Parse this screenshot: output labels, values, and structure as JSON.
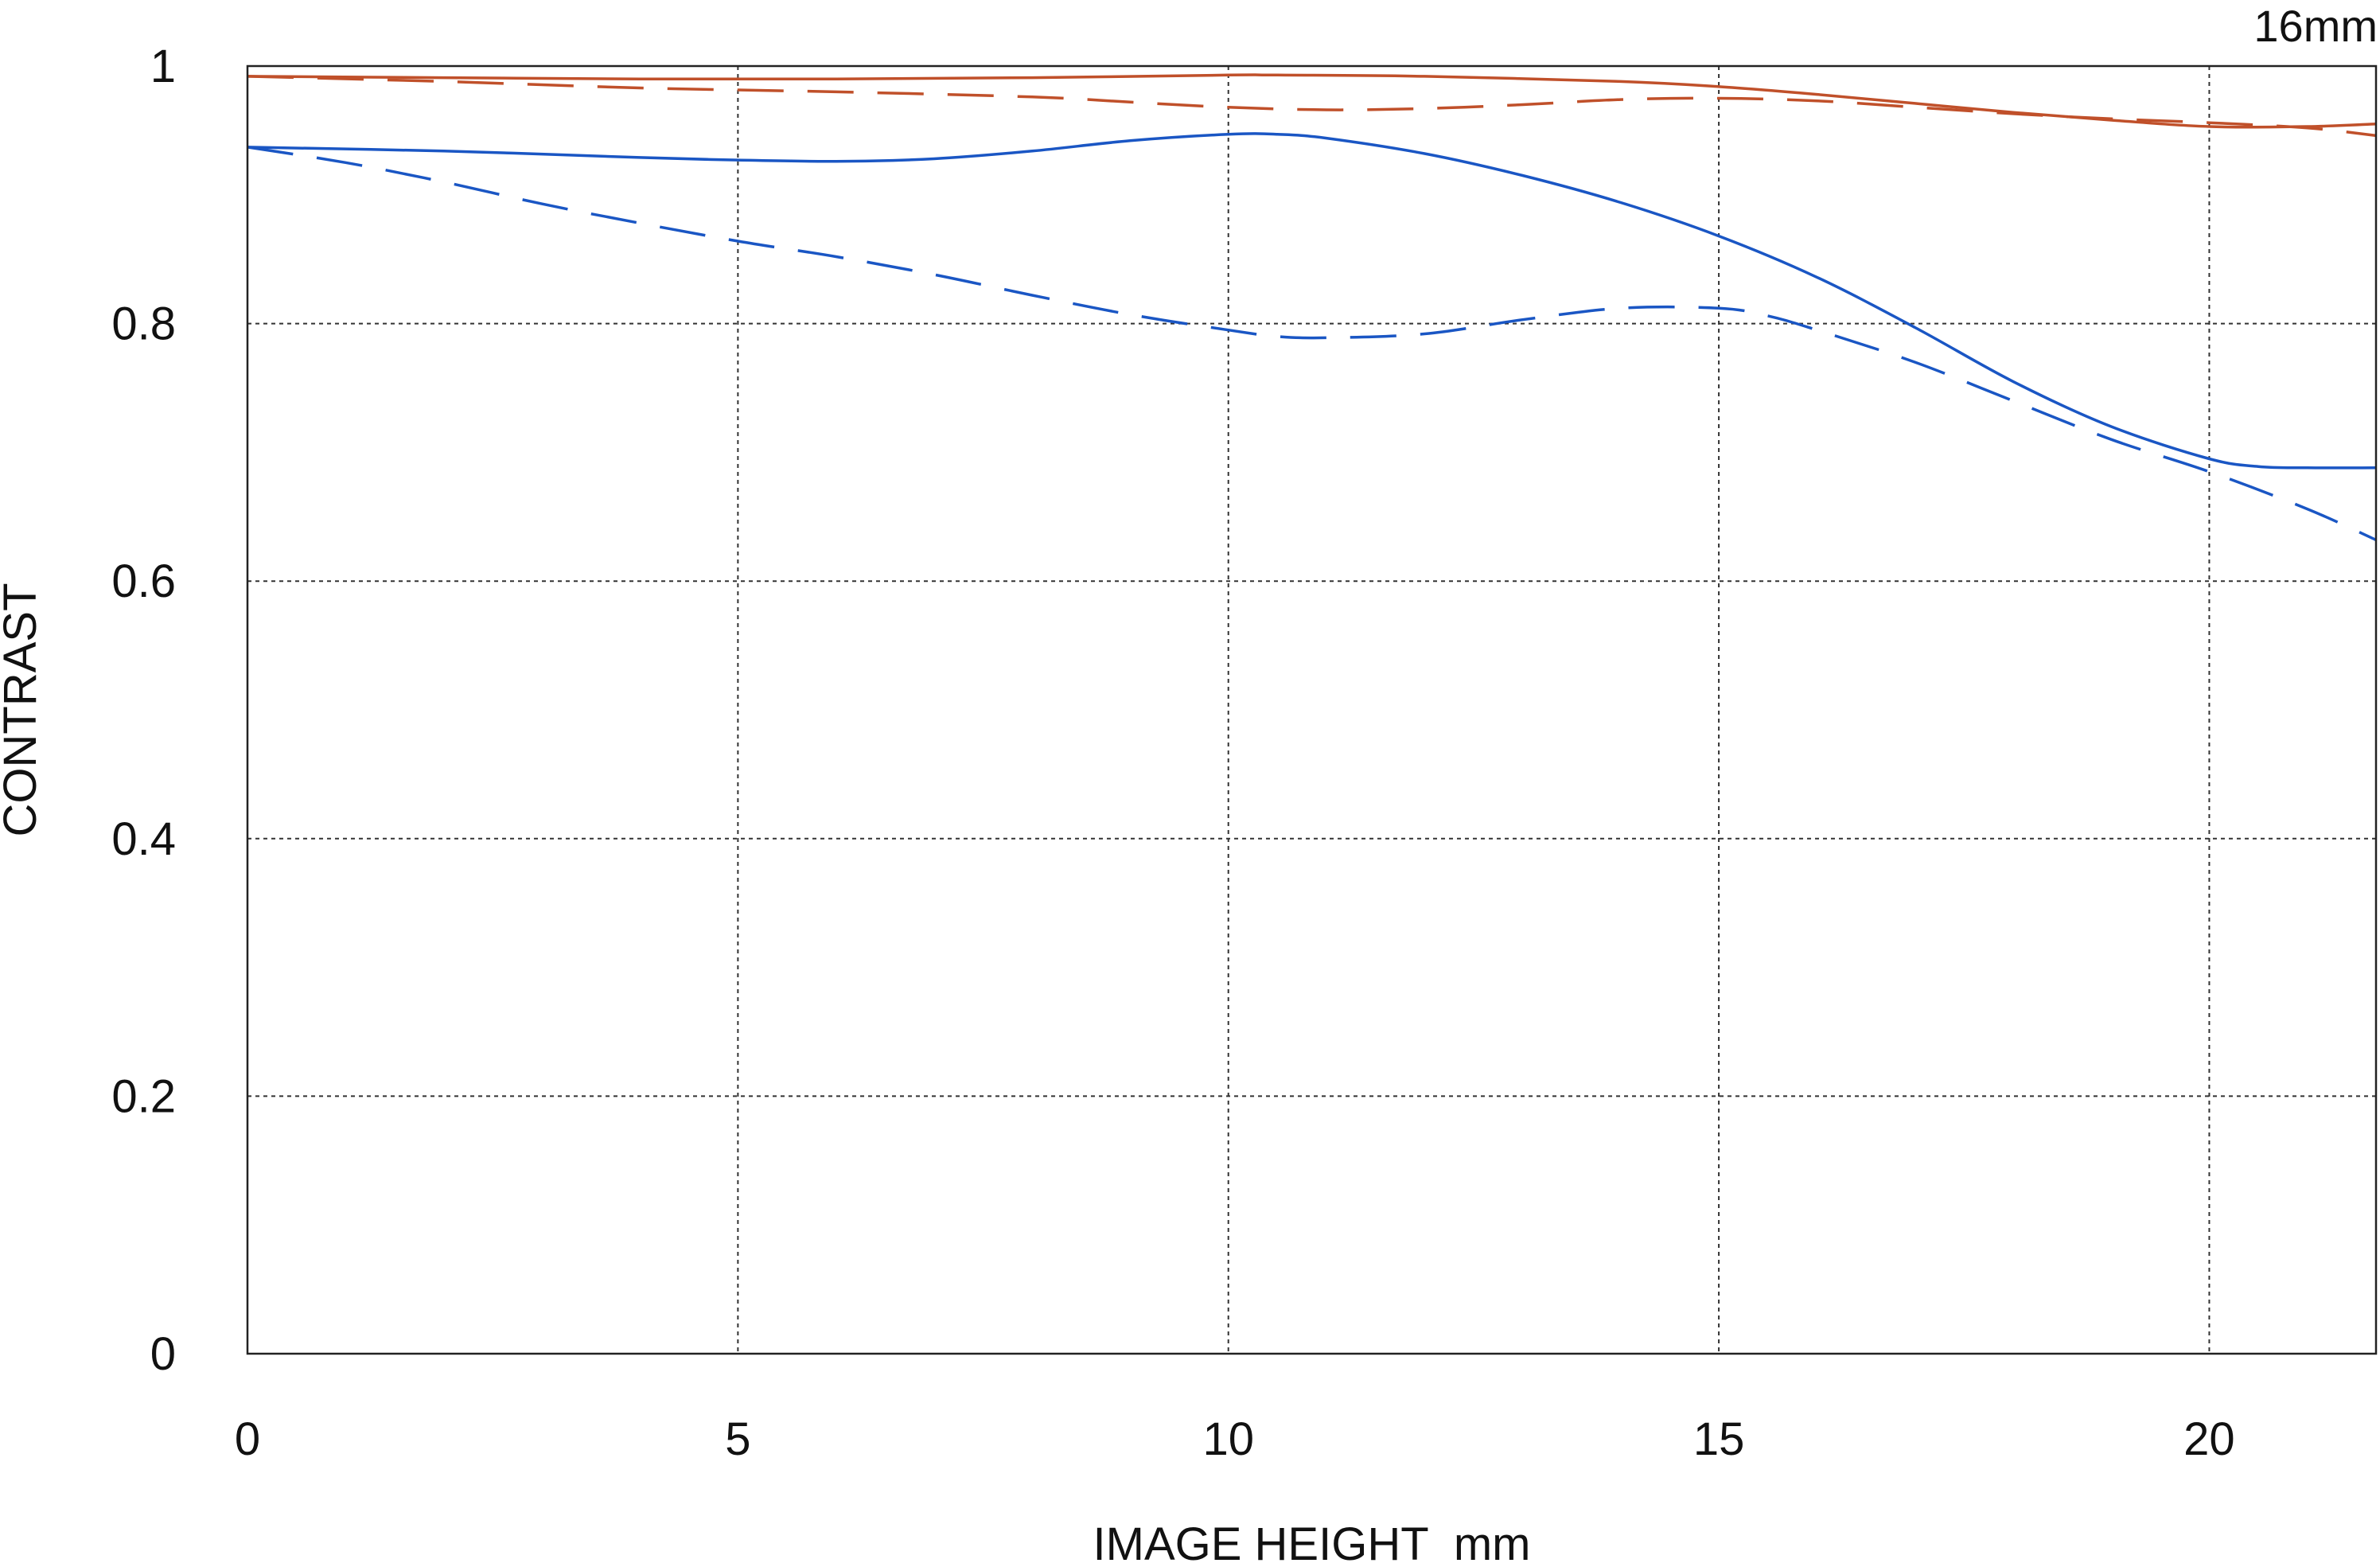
{
  "chart_data": {
    "type": "line",
    "title": "",
    "corner_label": "16mm",
    "xlabel": "IMAGE HEIGHT  mm",
    "ylabel": "CONTRAST",
    "xlim": [
      0,
      21.7
    ],
    "ylim": [
      0,
      1
    ],
    "x_ticks": [
      0,
      5,
      10,
      15,
      20
    ],
    "y_ticks": [
      0,
      0.2,
      0.4,
      0.6,
      0.8,
      1
    ],
    "x_tick_labels": [
      "0",
      "5",
      "10",
      "15",
      "20"
    ],
    "y_tick_labels": [
      "0",
      "0.2",
      "0.4",
      "0.6",
      "0.8",
      "1"
    ],
    "grid": true,
    "legend": "none",
    "series": [
      {
        "color": "#c0502a",
        "dash": "solid",
        "x": [
          0,
          2,
          4,
          6,
          8,
          10,
          10.5,
          12,
          14,
          15,
          16,
          17,
          18,
          19,
          20,
          21,
          21.7
        ],
        "y": [
          0.992,
          0.991,
          0.99,
          0.99,
          0.991,
          0.993,
          0.993,
          0.992,
          0.988,
          0.984,
          0.978,
          0.971,
          0.964,
          0.958,
          0.953,
          0.953,
          0.955
        ]
      },
      {
        "color": "#c0502a",
        "dash": "dashed",
        "x": [
          0,
          2,
          4,
          6,
          8,
          9,
          10,
          11,
          12,
          13,
          14,
          15,
          16,
          17,
          18,
          19,
          20,
          21,
          21.7
        ],
        "y": [
          0.992,
          0.988,
          0.983,
          0.98,
          0.976,
          0.972,
          0.968,
          0.966,
          0.967,
          0.97,
          0.974,
          0.975,
          0.973,
          0.968,
          0.963,
          0.959,
          0.956,
          0.952,
          0.946
        ]
      },
      {
        "color": "#1a56c4",
        "dash": "solid",
        "x": [
          0,
          2,
          4,
          5,
          6,
          7,
          8,
          9,
          10,
          10.5,
          11,
          12,
          13,
          14,
          15,
          16,
          17,
          18,
          19,
          20,
          20.5,
          21,
          21.7
        ],
        "y": [
          0.937,
          0.934,
          0.929,
          0.927,
          0.926,
          0.928,
          0.934,
          0.942,
          0.947,
          0.947,
          0.944,
          0.932,
          0.915,
          0.894,
          0.868,
          0.836,
          0.797,
          0.755,
          0.72,
          0.695,
          0.689,
          0.688,
          0.688
        ]
      },
      {
        "color": "#1a56c4",
        "dash": "dashed",
        "x": [
          0,
          1,
          2,
          3,
          4,
          5,
          6,
          7,
          8,
          9,
          10,
          10.5,
          11,
          12,
          13,
          14,
          15,
          15.5,
          16,
          17,
          18,
          19,
          20,
          21,
          21.7
        ],
        "y": [
          0.937,
          0.925,
          0.91,
          0.893,
          0.878,
          0.864,
          0.852,
          0.838,
          0.822,
          0.807,
          0.795,
          0.79,
          0.789,
          0.792,
          0.803,
          0.812,
          0.812,
          0.806,
          0.795,
          0.77,
          0.74,
          0.71,
          0.685,
          0.656,
          0.632
        ]
      }
    ]
  }
}
